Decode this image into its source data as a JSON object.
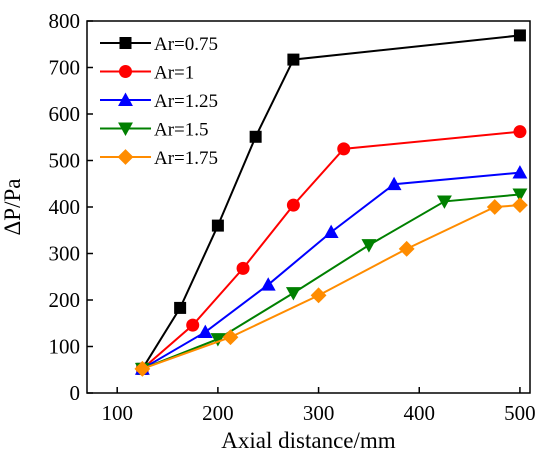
{
  "chart_data": {
    "type": "line",
    "title": "",
    "xlabel": "Axial distance/mm",
    "ylabel": "ΔP/Pa",
    "xlim": [
      70,
      510
    ],
    "ylim": [
      0,
      800
    ],
    "xticks": [
      100,
      200,
      300,
      400,
      500
    ],
    "yticks": [
      0,
      100,
      200,
      300,
      400,
      500,
      600,
      700,
      800
    ],
    "grid": false,
    "legend": "top-left",
    "series": [
      {
        "name": "Ar=0.75",
        "color": "#000000",
        "marker": "square",
        "x": [
          125,
          162.5,
          200,
          237.5,
          275,
          500
        ],
        "y": [
          52,
          183,
          360,
          551,
          717,
          769
        ]
      },
      {
        "name": "Ar=1",
        "color": "#ff0000",
        "marker": "circle",
        "x": [
          125,
          175,
          225,
          275,
          325,
          500
        ],
        "y": [
          52,
          146,
          268,
          404,
          525,
          562
        ]
      },
      {
        "name": "Ar=1.25",
        "color": "#0000ff",
        "marker": "triangle-up",
        "x": [
          125,
          187.5,
          250,
          312.5,
          375,
          500
        ],
        "y": [
          52,
          131,
          233,
          346,
          449,
          474
        ]
      },
      {
        "name": "Ar=1.5",
        "color": "#008000",
        "marker": "triangle-down",
        "x": [
          125,
          200,
          275,
          350,
          425,
          500
        ],
        "y": [
          52,
          116,
          215,
          318,
          412,
          427
        ]
      },
      {
        "name": "Ar=1.75",
        "color": "#ff8c00",
        "marker": "diamond",
        "x": [
          125,
          212.5,
          300,
          387.5,
          475,
          500
        ],
        "y": [
          52,
          120,
          210,
          310,
          400,
          404
        ]
      }
    ]
  }
}
